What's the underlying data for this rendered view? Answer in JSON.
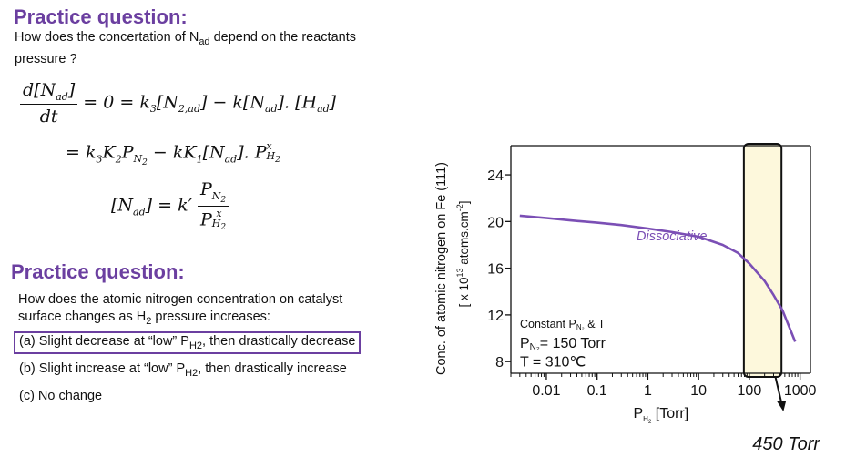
{
  "q1": {
    "heading": "Practice question:",
    "text_1": "How does the concertation of N",
    "text_1_sub": "ad",
    "text_1_end": " depend on the reactants",
    "text_2": "pressure ?"
  },
  "equations": {
    "line1": {
      "num": "d[N",
      "num_sub": "ad",
      "num_end": "]",
      "den": "dt",
      "rhs_1": " = 0 = k",
      "rhs_1_sub": "3",
      "rhs_2": "[N",
      "rhs_2_sub": "2,ad",
      "rhs_3": "] − k[N",
      "rhs_3_sub": "ad",
      "rhs_4": "]. [H",
      "rhs_4_sub": "ad",
      "rhs_5": "]"
    },
    "line2": {
      "t1": "= k",
      "t1_sub": "3",
      "t2": "K",
      "t2_sub": "2",
      "t3": "P",
      "t3_sub": "N",
      "t3_subsub": "2",
      "t4": " − kK",
      "t4_sub": "1",
      "t5": "[N",
      "t5_sub": "ad",
      "t6": "]. P",
      "t6_sup": "x",
      "t6_sub": "H",
      "t6_subsub": "2"
    },
    "line3": {
      "lhs": "[N",
      "lhs_sub": "ad",
      "lhs_end": "] = k′",
      "num": "P",
      "num_sub": "N",
      "num_subsub": "2",
      "den": "P",
      "den_sup": "x",
      "den_sub": "H",
      "den_subsub": "2"
    }
  },
  "q2": {
    "heading": "Practice question:",
    "text_1": "How does the atomic nitrogen concentration on catalyst",
    "text_2a": "surface changes as H",
    "text_2_sub": "2",
    "text_2b": " pressure increases:",
    "options": [
      {
        "a": "(a) Slight decrease at “low” P",
        "sub": "H2",
        "b": ", then drastically decrease"
      },
      {
        "a": "(b) Slight increase at “low” P",
        "sub": "H2",
        "b": ", then drastically increase"
      },
      {
        "a": "(c) No change",
        "sub": "",
        "b": ""
      }
    ]
  },
  "chart_data": {
    "type": "line",
    "ylabel_1": "Conc. of atomic nitrogen on Fe (111)",
    "ylabel_2": "[ x 10",
    "ylabel_2_sup": "13",
    "ylabel_2_end": " atoms.cm",
    "ylabel_2_sup2": "-2",
    "ylabel_2_close": "]",
    "xlabel": "P",
    "xlabel_sub": "H",
    "xlabel_subsub": "2",
    "xlabel_end": " [Torr]",
    "x_scale": "log",
    "xlim": [
      0.002,
      1600
    ],
    "ylim": [
      7,
      26.5
    ],
    "x_ticks": [
      0.01,
      0.1,
      1,
      10,
      100,
      1000
    ],
    "x_tick_labels": [
      "0.01",
      "0.1",
      "1",
      "10",
      "100",
      "1000"
    ],
    "y_ticks": [
      8,
      12,
      16,
      20,
      24
    ],
    "y_tick_labels": [
      "8",
      "12",
      "16",
      "20",
      "24"
    ],
    "series": [
      {
        "name": "Dissociative",
        "color": "#7b4fb5",
        "x": [
          0.003,
          0.01,
          0.03,
          0.1,
          0.3,
          1,
          3,
          10,
          30,
          60,
          100,
          200,
          300,
          450,
          800
        ],
        "y": [
          20.5,
          20.3,
          20.1,
          19.9,
          19.7,
          19.4,
          19.1,
          18.7,
          18.0,
          17.3,
          16.4,
          14.9,
          13.7,
          12.4,
          9.7
        ]
      }
    ],
    "highlight": {
      "x_from": 78,
      "x_to": 430,
      "fill": "#fdf8dc",
      "stroke": "#111111"
    },
    "annotations": {
      "line_1": "Constant P",
      "line_1_sub": "N₂",
      "line_1_end": " & T",
      "line_2": "P",
      "line_2_sub": "N₂",
      "line_2_end": "= 150 Torr",
      "line_3": "T = 310℃"
    },
    "callout": {
      "label": "450 Torr",
      "x": 450
    }
  }
}
